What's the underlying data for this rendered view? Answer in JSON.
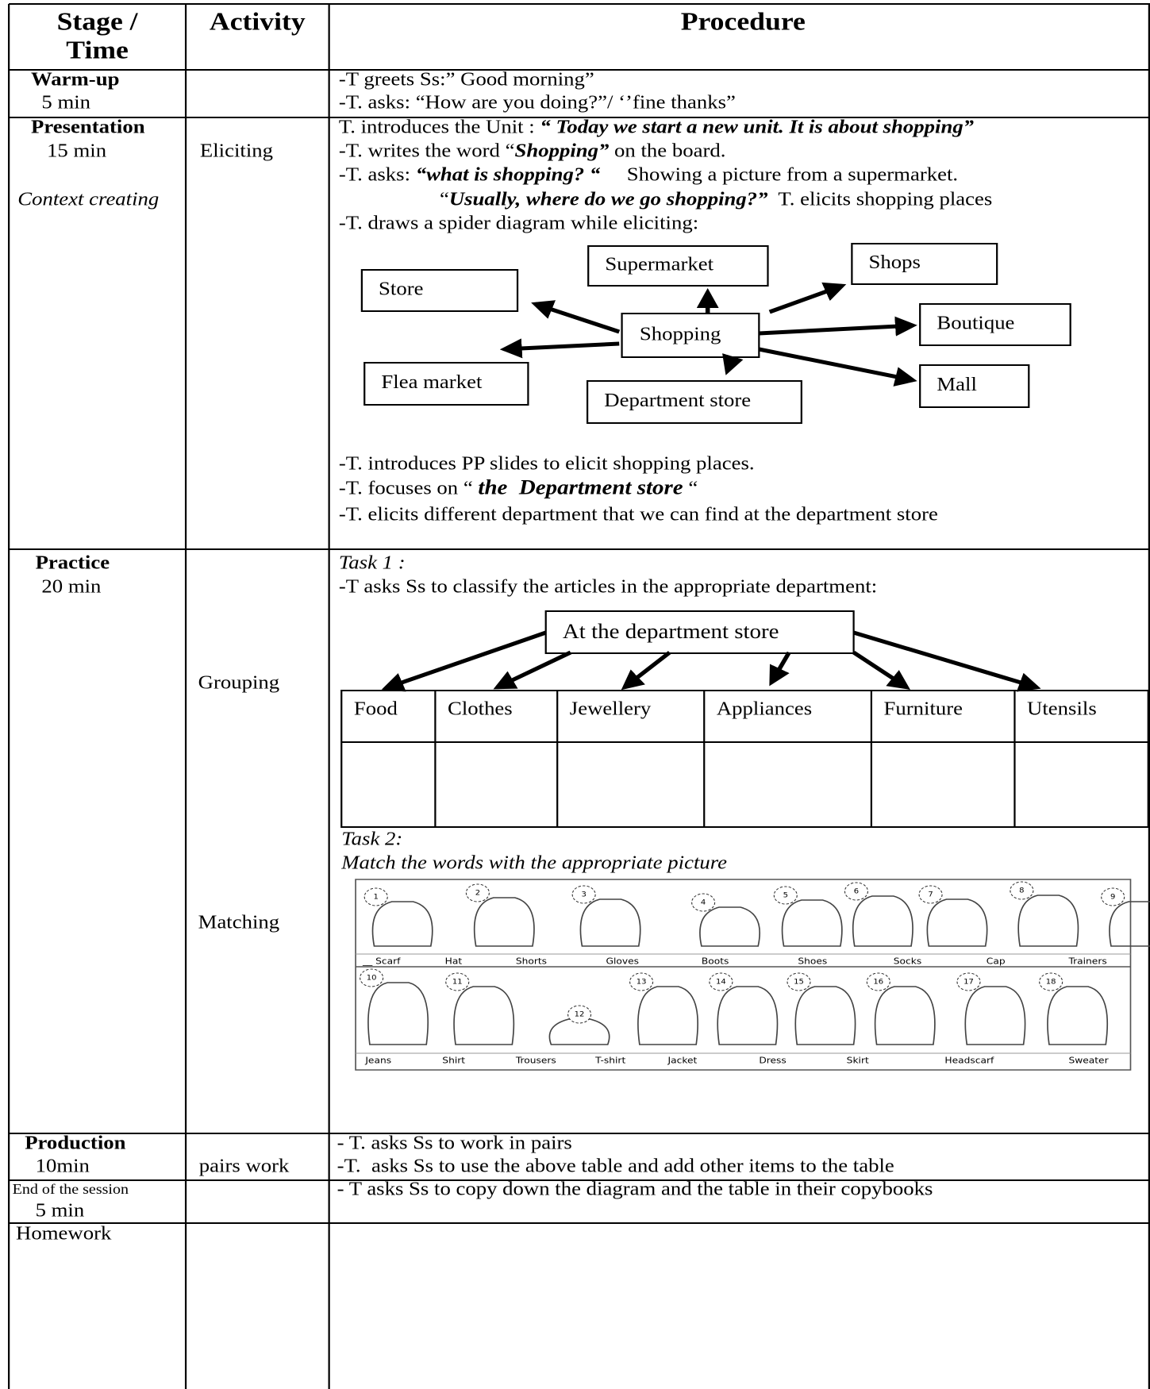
{
  "header": {
    "stage": "Stage /",
    "time": "Time",
    "activity": "Activity",
    "procedure": "Procedure"
  },
  "warmup": {
    "stage": "Warm-up",
    "time": "5 min",
    "lines": [
      "-T greets Ss:” Good morning”",
      "-T. asks: “How are you doing?”/ ‘’fine thanks”"
    ]
  },
  "presentation": {
    "stage": "Presentation",
    "time": "15 min",
    "note": "Context creating",
    "activity": "Eliciting",
    "lines": [
      [
        "T. introduces the Unit : ",
        "“ Today we start a new unit. It is about shopping”"
      ],
      [
        "-T. writes the word “",
        "Shopping”",
        " on the board."
      ],
      [
        "-T. asks: ",
        "“what is shopping? “",
        "     Showing a picture from a supermarket."
      ],
      [
        "“",
        "Usually, where do we go shopping?”",
        "  T. elicits shopping places"
      ],
      [
        "-T. draws a spider diagram while eliciting:"
      ]
    ],
    "diagram": {
      "center": "Shopping",
      "nodes": [
        "Supermarket",
        "Shops",
        "Store",
        "Boutique",
        "Flea market",
        "Department store",
        "Mall"
      ]
    },
    "after": [
      [
        "-T. introduces PP slides to elicit shopping places."
      ],
      [
        "-T. focuses on “ ",
        "the  Department store",
        " “"
      ],
      [
        "-T. elicits different department that we can find at the department store"
      ]
    ]
  },
  "practice": {
    "stage": "Practice",
    "time": "20 min",
    "activities": [
      "Grouping",
      "Matching"
    ],
    "task1": {
      "title": "Task 1 :",
      "instruction": "-T asks Ss to classify the articles in the appropriate department:",
      "root": "At the department store",
      "departments": [
        "Food",
        "Clothes",
        "Jewellery",
        "Appliances",
        "Furniture",
        "Utensils"
      ]
    },
    "task2": {
      "title": "Task 2:",
      "instruction": "Match the words with the appropriate picture",
      "numbers": [
        "1",
        "2",
        "3",
        "4",
        "5",
        "6",
        "7",
        "8",
        "9",
        "10",
        "11",
        "12",
        "13",
        "14",
        "15",
        "16",
        "17",
        "18"
      ],
      "words_row1": [
        "__ Scarf",
        "Hat",
        "Shorts",
        "Gloves",
        "Boots",
        "Shoes",
        "Socks",
        "Cap",
        "Trainers"
      ],
      "words_row2": [
        "Jeans",
        "Shirt",
        "Trousers",
        "T-shirt",
        "Jacket",
        "Dress",
        "Skirt",
        "Headscarf",
        "Sweater"
      ]
    }
  },
  "production": {
    "stage": "Production",
    "time": "10min",
    "activity": "pairs work",
    "lines": [
      "- T. asks Ss to work in pairs",
      "-T.  asks Ss to use the above table and add other items to the table"
    ]
  },
  "end": {
    "stage": "End of the session",
    "time": "5 min",
    "lines": [
      "- T asks Ss to copy down the diagram and the table in their copybooks"
    ]
  },
  "homework": {
    "stage": "Homework"
  }
}
